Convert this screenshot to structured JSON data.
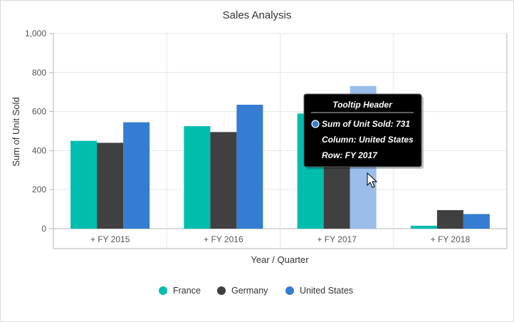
{
  "chart_data": {
    "type": "bar",
    "title": "Sales Analysis",
    "xlabel": "Year / Quarter",
    "ylabel": "Sum of Unit Sold",
    "ylim": [
      0,
      1000
    ],
    "yticks": [
      "0",
      "200",
      "400",
      "600",
      "800",
      "1,000"
    ],
    "categories": [
      "+ FY 2015",
      "+ FY 2016",
      "+ FY 2017",
      "+ FY 2018"
    ],
    "series": [
      {
        "name": "France",
        "color": "#00bdae",
        "values": [
          450,
          525,
          590,
          15
        ]
      },
      {
        "name": "Germany",
        "color": "#404041",
        "values": [
          440,
          495,
          480,
          95
        ]
      },
      {
        "name": "United States",
        "color": "#357cd2",
        "values": [
          545,
          635,
          731,
          75
        ]
      }
    ],
    "grid": true,
    "legend": "bottom",
    "highlight": {
      "series": 2,
      "category": 2,
      "color": "#9abde9"
    }
  },
  "tooltip": {
    "header": "Tooltip Header",
    "line1": "Sum of Unit Sold: 731",
    "line2": "Column: United States",
    "line3": "Row: FY 2017",
    "marker_color": "#357cd2"
  }
}
